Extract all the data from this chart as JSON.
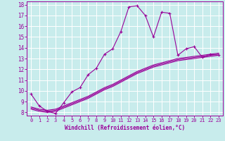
{
  "xlabel": "Windchill (Refroidissement éolien,°C)",
  "bg_color": "#c8ecec",
  "line_color": "#990099",
  "grid_color": "#ffffff",
  "xmin": -0.5,
  "xmax": 23.5,
  "ymin": 7.7,
  "ymax": 18.3,
  "yticks": [
    8,
    9,
    10,
    11,
    12,
    13,
    14,
    15,
    16,
    17,
    18
  ],
  "xticks": [
    0,
    1,
    2,
    3,
    4,
    5,
    6,
    7,
    8,
    9,
    10,
    11,
    12,
    13,
    14,
    15,
    16,
    17,
    18,
    19,
    20,
    21,
    22,
    23
  ],
  "line1": {
    "x": [
      0,
      1,
      2,
      3,
      4,
      5,
      6,
      7,
      8,
      9,
      10,
      11,
      12,
      13,
      14,
      15,
      16,
      17,
      18,
      19,
      20,
      21,
      22,
      23
    ],
    "y": [
      9.7,
      8.6,
      8.1,
      7.9,
      8.9,
      9.9,
      10.3,
      11.5,
      12.1,
      13.4,
      13.9,
      15.5,
      17.8,
      17.9,
      17.0,
      15.0,
      17.3,
      17.2,
      13.3,
      13.9,
      14.1,
      13.1,
      13.4,
      13.3
    ]
  },
  "line2": {
    "x": [
      0,
      1,
      2,
      3,
      4,
      5,
      6,
      7,
      8,
      9,
      10,
      11,
      12,
      13,
      14,
      15,
      16,
      17,
      18,
      19,
      20,
      21,
      22,
      23
    ],
    "y": [
      8.5,
      8.3,
      8.2,
      8.3,
      8.6,
      8.9,
      9.2,
      9.5,
      9.9,
      10.3,
      10.6,
      11.0,
      11.4,
      11.8,
      12.1,
      12.4,
      12.6,
      12.8,
      13.0,
      13.1,
      13.2,
      13.3,
      13.4,
      13.5
    ]
  },
  "line3": {
    "x": [
      0,
      1,
      2,
      3,
      4,
      5,
      6,
      7,
      8,
      9,
      10,
      11,
      12,
      13,
      14,
      15,
      16,
      17,
      18,
      19,
      20,
      21,
      22,
      23
    ],
    "y": [
      8.4,
      8.2,
      8.1,
      8.2,
      8.5,
      8.8,
      9.1,
      9.4,
      9.8,
      10.2,
      10.5,
      10.9,
      11.3,
      11.7,
      12.0,
      12.3,
      12.5,
      12.7,
      12.9,
      13.0,
      13.1,
      13.2,
      13.3,
      13.4
    ]
  },
  "line4": {
    "x": [
      0,
      1,
      2,
      3,
      4,
      5,
      6,
      7,
      8,
      9,
      10,
      11,
      12,
      13,
      14,
      15,
      16,
      17,
      18,
      19,
      20,
      21,
      22,
      23
    ],
    "y": [
      8.3,
      8.1,
      8.0,
      8.1,
      8.4,
      8.7,
      9.0,
      9.3,
      9.7,
      10.1,
      10.4,
      10.8,
      11.2,
      11.6,
      11.9,
      12.2,
      12.4,
      12.6,
      12.8,
      12.9,
      13.0,
      13.1,
      13.2,
      13.3
    ]
  }
}
